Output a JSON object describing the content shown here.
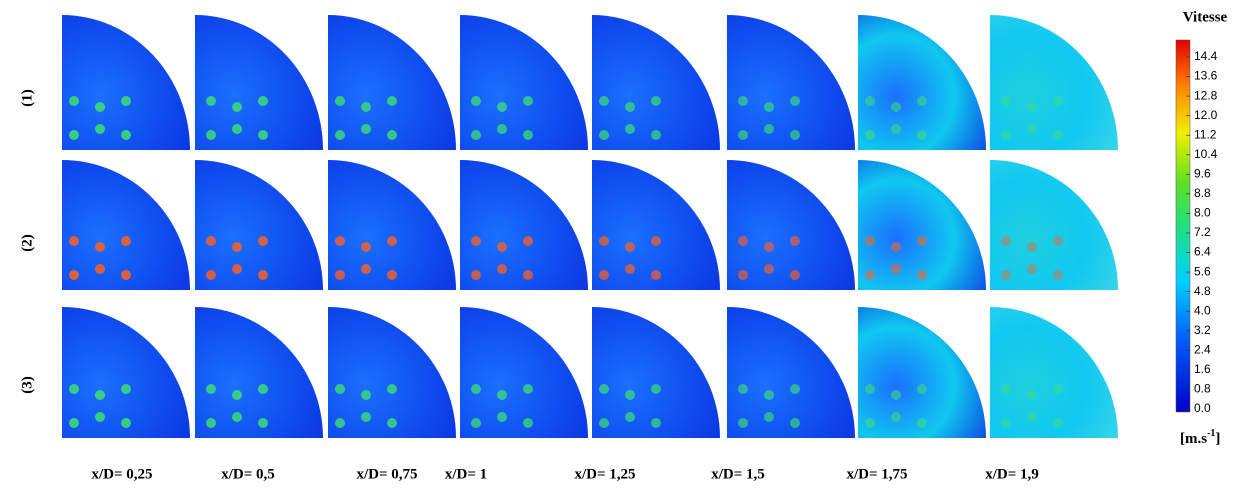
{
  "rows": [
    "(1)",
    "(2)",
    "(3)"
  ],
  "columns": [
    "x/D= 0,25",
    "x/D= 0,5",
    "x/D= 0,75",
    "x/D= 1",
    "x/D= 1,25",
    "x/D= 1,5",
    "x/D= 1,75",
    "x/D= 1,9"
  ],
  "colorbar": {
    "title": "Vitesse",
    "unit": "[m.s",
    "unit_exponent": "-1",
    "unit_close": "]",
    "ticks": [
      {
        "value": 0,
        "label": "0.0"
      },
      {
        "value": 0.8,
        "label": "0.8"
      },
      {
        "value": 1.6,
        "label": "1.6"
      },
      {
        "value": 2.4,
        "label": "2.4"
      },
      {
        "value": 3.2,
        "label": "3.2"
      },
      {
        "value": 4,
        "label": "4.0"
      },
      {
        "value": 4.8,
        "label": "4.8"
      },
      {
        "value": 5.6,
        "label": "5.6"
      },
      {
        "value": 6.4,
        "label": "6.4"
      },
      {
        "value": 7.2,
        "label": "7.2"
      },
      {
        "value": 8,
        "label": "8.0"
      },
      {
        "value": 8.8,
        "label": "8.8"
      },
      {
        "value": 9.6,
        "label": "9.6"
      },
      {
        "value": 10.4,
        "label": "10.4"
      },
      {
        "value": 11.2,
        "label": "11.2"
      },
      {
        "value": 12,
        "label": "12.0"
      },
      {
        "value": 12.8,
        "label": "12.8"
      },
      {
        "value": 13.6,
        "label": "13.6"
      },
      {
        "value": 14.4,
        "label": "14.4"
      }
    ]
  }
}
